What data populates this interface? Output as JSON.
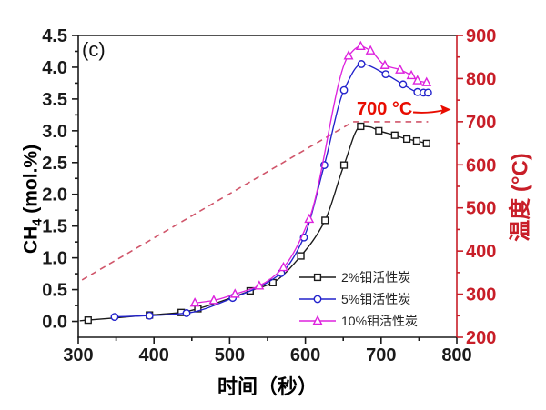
{
  "chart_data": {
    "type": "line",
    "panel_label": "(c)",
    "xlabel": "时间（秒）",
    "ylabel_left": {
      "prefix": "CH",
      "sub": "4",
      "suffix": " (mol.%)"
    },
    "ylabel_right": "温度 (°C)",
    "annotation": {
      "text": "700 °C",
      "color": "#e80c00"
    },
    "xlim": [
      300,
      800
    ],
    "ylim_left": [
      -0.25,
      4.5
    ],
    "ylim_right": [
      200,
      900
    ],
    "xticks": {
      "major": [
        300,
        400,
        500,
        600,
        700,
        800
      ],
      "minor": [
        350,
        450,
        550,
        650,
        750
      ]
    },
    "yticks_left": {
      "major": [
        0,
        0.5,
        1,
        1.5,
        2,
        2.5,
        3,
        3.5,
        4,
        4.5
      ],
      "minor": [
        0.25,
        0.75,
        1.25,
        1.75,
        2.25,
        2.75,
        3.25,
        3.75,
        4.25
      ]
    },
    "yticks_right": {
      "major": [
        200,
        300,
        400,
        500,
        600,
        700,
        800,
        900
      ],
      "minor": [
        250,
        350,
        450,
        550,
        650,
        750,
        850
      ]
    },
    "axis_colors": {
      "left": "#1a1a1a",
      "right": "#c81e28"
    },
    "temperature_profile": {
      "axis": "right",
      "color": "#d0556a",
      "style": "dashed",
      "x": [
        305,
        663,
        762
      ],
      "y": [
        333,
        700,
        700
      ]
    },
    "series": [
      {
        "name": "2%钼活性炭",
        "color": "#1a1a1a",
        "marker": "square",
        "x": [
          313,
          394,
          436,
          458,
          527,
          557,
          594,
          626,
          651,
          673,
          697,
          718,
          734,
          747,
          760
        ],
        "y": [
          0.02,
          0.1,
          0.14,
          0.2,
          0.48,
          0.61,
          1.03,
          1.59,
          2.46,
          3.07,
          3.0,
          2.93,
          2.87,
          2.84,
          2.8
        ]
      },
      {
        "name": "5%钼活性炭",
        "color": "#2222cc",
        "marker": "circle",
        "x": [
          348,
          394,
          443,
          504,
          568,
          598,
          625,
          651,
          674,
          706,
          729,
          748,
          756,
          762
        ],
        "y": [
          0.07,
          0.09,
          0.13,
          0.37,
          0.76,
          1.32,
          2.46,
          3.64,
          4.05,
          3.89,
          3.73,
          3.61,
          3.6,
          3.6
        ]
      },
      {
        "name": "10%钼活性炭",
        "color": "#dd22dd",
        "marker": "triangle-up",
        "x": [
          454,
          479,
          507,
          539,
          571,
          605,
          657,
          673,
          686,
          705,
          725,
          740,
          748,
          760
        ],
        "y": [
          0.29,
          0.33,
          0.43,
          0.56,
          0.85,
          1.61,
          4.18,
          4.33,
          4.26,
          4.03,
          3.96,
          3.87,
          3.79,
          3.76
        ]
      }
    ],
    "legend_position": "inside lower right"
  }
}
